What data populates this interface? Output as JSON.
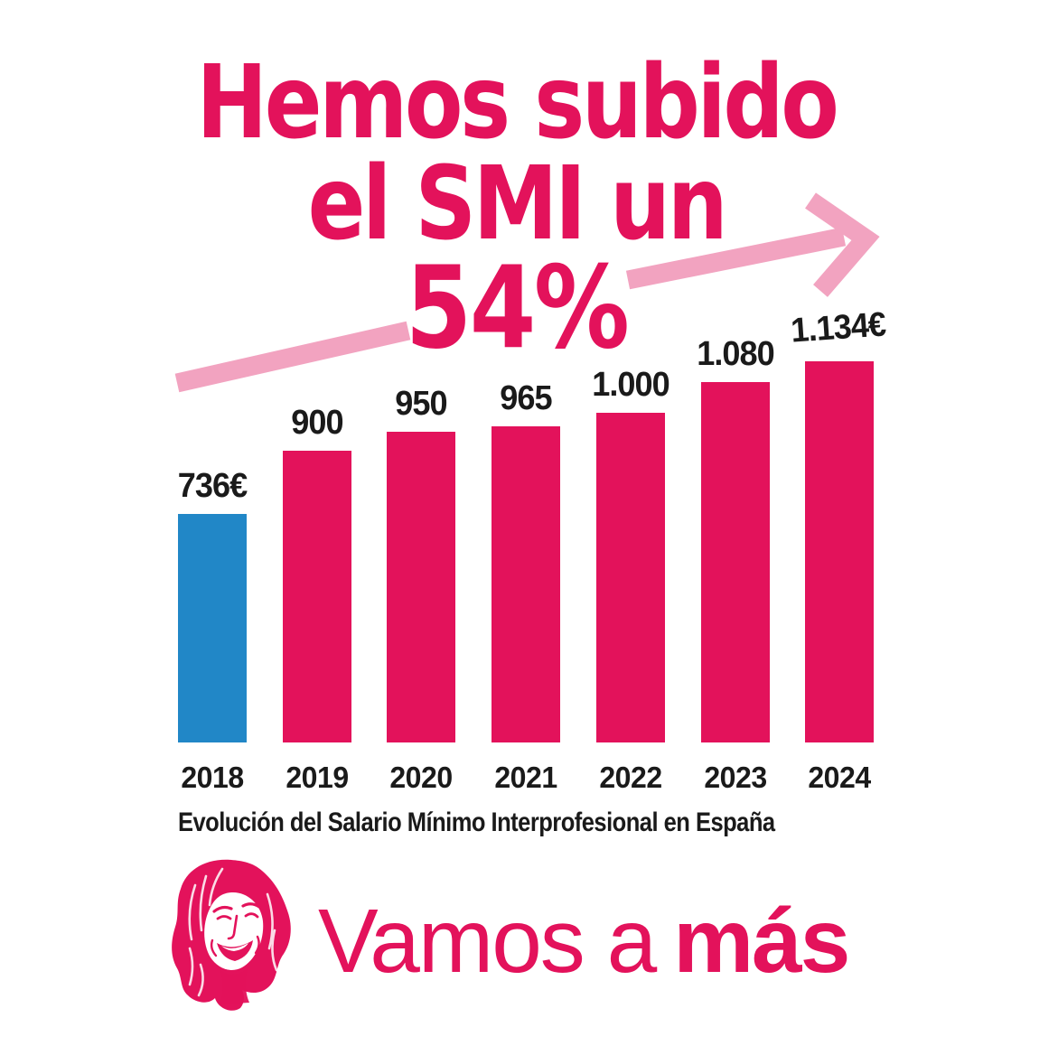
{
  "colors": {
    "brand_pink": "#e3125b",
    "light_pink": "#f2a3c0",
    "highlight_blue": "#2187c7",
    "text_black": "#1a1a1a",
    "background": "#ffffff"
  },
  "title": {
    "line1": "Hemos subido",
    "line2": "el SMI un",
    "line3": "54%"
  },
  "chart_data": {
    "type": "bar",
    "title": "Evolución del Salario Mínimo Interprofesional en España",
    "categories": [
      "2018",
      "2019",
      "2020",
      "2021",
      "2022",
      "2023",
      "2024"
    ],
    "values": [
      736,
      900,
      950,
      965,
      1000,
      1080,
      1134
    ],
    "value_labels": [
      "736€",
      "900",
      "950",
      "965",
      "1.000",
      "1.080",
      "1.134€"
    ],
    "unit": "EUR/month",
    "bar_color": "#e3125b",
    "highlight": {
      "category": "2018",
      "color": "#2187c7"
    },
    "xlabel": "",
    "ylabel": "",
    "ylim": [
      0,
      1200
    ],
    "grid": false,
    "legend": false,
    "annotation": "Hemos subido el SMI un 54%"
  },
  "footer": {
    "slogan_regular": "Vamos a",
    "slogan_bold": "más"
  },
  "icons": {
    "trend_arrow": "upward-right-trend-arrow",
    "portrait": "woman-laughing-duotone-portrait"
  }
}
